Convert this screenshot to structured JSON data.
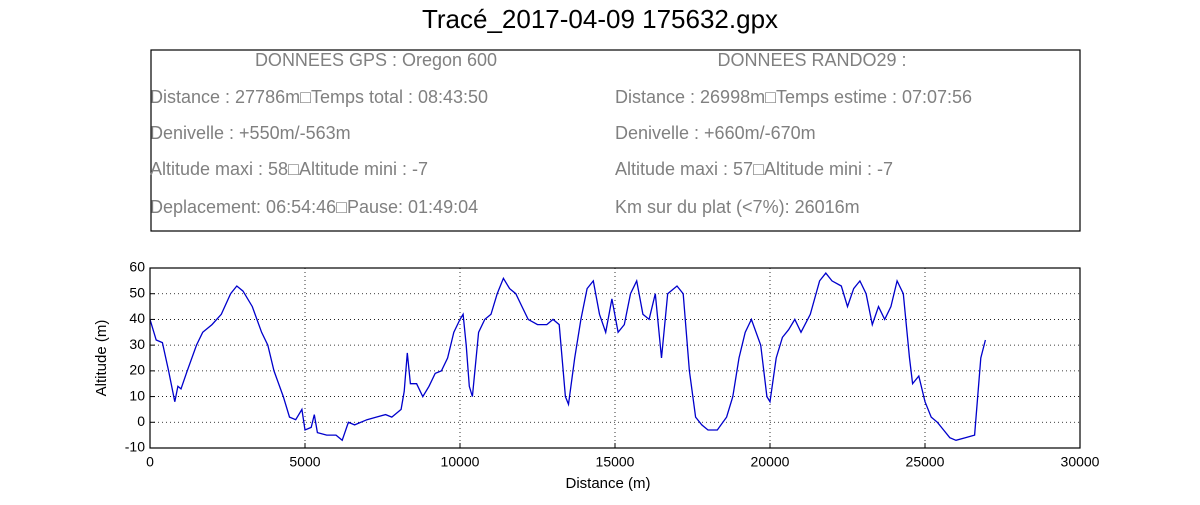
{
  "chart_data": {
    "type": "line",
    "title": "Tracé_2017-04-09 175632.gpx",
    "info_box": {
      "left": [
        "DONNEES GPS :  Oregon 600",
        "Distance : 27786m□Temps total : 08:43:50",
        "Denivelle : +550m/-563m",
        "Altitude maxi : 58□Altitude mini : -7",
        "Deplacement: 06:54:46□Pause: 01:49:04"
      ],
      "right": [
        "DONNEES RANDO29  :",
        "Distance : 26998m□Temps estime : 07:07:56",
        "Denivelle : +660m/-670m",
        "Altitude maxi : 57□Altitude mini : -7",
        "Km sur du plat  (<7%): 26016m"
      ]
    },
    "xlabel": "Distance (m)",
    "ylabel": "Altitude (m)",
    "xlim": [
      0,
      30000
    ],
    "ylim": [
      -10,
      60
    ],
    "xticks": [
      0,
      5000,
      10000,
      15000,
      20000,
      25000,
      30000
    ],
    "yticks": [
      -10,
      0,
      10,
      20,
      30,
      40,
      50,
      60
    ],
    "grid": true,
    "series": [
      {
        "name": "Altitude",
        "color": "#0000cc",
        "x": [
          0,
          200,
          400,
          600,
          800,
          900,
          1000,
          1200,
          1500,
          1700,
          2000,
          2300,
          2600,
          2800,
          3000,
          3300,
          3600,
          3800,
          4000,
          4300,
          4500,
          4700,
          4900,
          5000,
          5200,
          5300,
          5400,
          5700,
          6000,
          6200,
          6400,
          6600,
          7000,
          7300,
          7600,
          7800,
          8000,
          8100,
          8200,
          8300,
          8400,
          8600,
          8800,
          9000,
          9200,
          9400,
          9600,
          9800,
          10000,
          10100,
          10200,
          10300,
          10400,
          10600,
          10800,
          11000,
          11200,
          11400,
          11600,
          11800,
          12000,
          12200,
          12500,
          12800,
          13000,
          13200,
          13400,
          13500,
          13700,
          13900,
          14100,
          14300,
          14500,
          14700,
          14900,
          15100,
          15300,
          15500,
          15700,
          15900,
          16100,
          16300,
          16500,
          16700,
          17000,
          17200,
          17400,
          17600,
          17800,
          18000,
          18300,
          18600,
          18800,
          19000,
          19200,
          19400,
          19700,
          19900,
          20000,
          20200,
          20400,
          20600,
          20800,
          21000,
          21300,
          21600,
          21800,
          22000,
          22300,
          22500,
          22700,
          22900,
          23100,
          23300,
          23500,
          23700,
          23900,
          24100,
          24300,
          24500,
          24600,
          24800,
          25000,
          25200,
          25400,
          25600,
          25800,
          26000,
          26300,
          26600,
          26800,
          26950
        ],
        "values": [
          40,
          32,
          31,
          20,
          8,
          14,
          13,
          20,
          30,
          35,
          38,
          42,
          50,
          53,
          51,
          45,
          35,
          30,
          20,
          10,
          2,
          1,
          5,
          -3,
          -2,
          3,
          -4,
          -5,
          -5,
          -7,
          0,
          -1,
          1,
          2,
          3,
          2,
          4,
          5,
          12,
          27,
          15,
          15,
          10,
          14,
          19,
          20,
          25,
          35,
          40,
          42,
          30,
          14,
          10,
          35,
          40,
          42,
          50,
          56,
          52,
          50,
          45,
          40,
          38,
          38,
          40,
          38,
          10,
          7,
          25,
          40,
          52,
          55,
          42,
          35,
          48,
          35,
          38,
          50,
          55,
          42,
          40,
          50,
          25,
          50,
          53,
          50,
          20,
          2,
          -1,
          -3,
          -3,
          2,
          10,
          25,
          35,
          40,
          30,
          10,
          8,
          25,
          33,
          36,
          40,
          35,
          42,
          55,
          58,
          55,
          53,
          45,
          52,
          55,
          50,
          38,
          45,
          40,
          45,
          55,
          50,
          25,
          15,
          18,
          8,
          2,
          0,
          -3,
          -6,
          -7,
          -6,
          -5,
          25,
          32
        ]
      }
    ]
  }
}
